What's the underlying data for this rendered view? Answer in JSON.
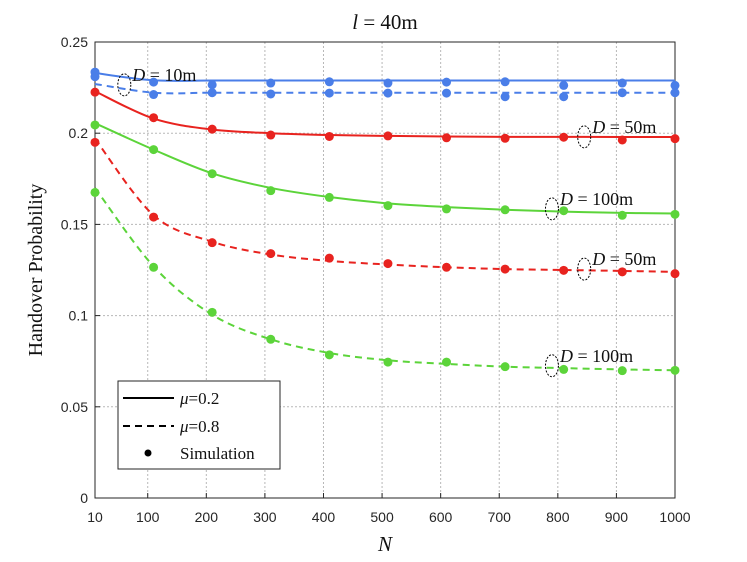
{
  "chart_data": {
    "type": "line",
    "title_var": "l",
    "title_value": " = 40m",
    "xlabel": "N",
    "ylabel": "Handover Probability",
    "xlim": [
      10,
      1000
    ],
    "ylim": [
      0,
      0.25
    ],
    "xticks": [
      10,
      100,
      200,
      300,
      400,
      500,
      600,
      700,
      800,
      900,
      1000
    ],
    "yticks": [
      0,
      0.05,
      0.1,
      0.15,
      0.2,
      0.25
    ],
    "ytick_labels": [
      "0",
      "0.05",
      "0.1",
      "0.15",
      "0.2",
      "0.25"
    ],
    "grid": true,
    "legend_position": "bottom-left",
    "legend": [
      {
        "style": "solid",
        "var": "μ",
        "text": "=0.2"
      },
      {
        "style": "dashed",
        "var": "μ",
        "text": "=0.8"
      },
      {
        "style": "marker",
        "var": "",
        "text": "Simulation"
      }
    ],
    "x": [
      10,
      110,
      210,
      310,
      410,
      510,
      610,
      710,
      810,
      910,
      1000
    ],
    "series": [
      {
        "name": "D=10m, μ=0.2",
        "color": "#4a7ee8",
        "dash": "solid",
        "values": [
          0.233,
          0.229,
          0.2289,
          0.2289,
          0.2289,
          0.2289,
          0.2289,
          0.2289,
          0.2289,
          0.2289,
          0.2289
        ],
        "sim": [
          0.2335,
          0.228,
          0.2265,
          0.2275,
          0.2282,
          0.2275,
          0.228,
          0.2282,
          0.2262,
          0.2275,
          0.2262
        ]
      },
      {
        "name": "D=10m, μ=0.8",
        "color": "#4a7ee8",
        "dash": "dashed",
        "values": [
          0.227,
          0.2222,
          0.2222,
          0.2222,
          0.2222,
          0.2222,
          0.2222,
          0.2222,
          0.2222,
          0.2222,
          0.2222
        ],
        "sim": [
          0.231,
          0.2212,
          0.2222,
          0.2215,
          0.222,
          0.222,
          0.222,
          0.22,
          0.22,
          0.2222,
          0.2222
        ]
      },
      {
        "name": "D=50m, μ=0.2",
        "color": "#e8231f",
        "dash": "solid",
        "values": [
          0.223,
          0.208,
          0.202,
          0.2,
          0.199,
          0.1985,
          0.1982,
          0.198,
          0.198,
          0.1979,
          0.1979
        ],
        "sim": [
          0.2225,
          0.2085,
          0.2022,
          0.199,
          0.1982,
          0.1985,
          0.1975,
          0.1972,
          0.1978,
          0.1963,
          0.197
        ]
      },
      {
        "name": "D=50m, μ=0.8",
        "color": "#e8231f",
        "dash": "dashed",
        "values": [
          0.197,
          0.155,
          0.1405,
          0.1335,
          0.13,
          0.128,
          0.1265,
          0.1255,
          0.125,
          0.1245,
          0.124
        ],
        "sim": [
          0.195,
          0.154,
          0.14,
          0.134,
          0.1315,
          0.1285,
          0.1265,
          0.1255,
          0.1248,
          0.124,
          0.123
        ]
      },
      {
        "name": "D=100m, μ=0.2",
        "color": "#5cd43a",
        "dash": "solid",
        "values": [
          0.2055,
          0.191,
          0.178,
          0.17,
          0.165,
          0.1615,
          0.1595,
          0.158,
          0.157,
          0.1563,
          0.156
        ],
        "sim": [
          0.2045,
          0.191,
          0.1778,
          0.1685,
          0.1648,
          0.1603,
          0.1585,
          0.158,
          0.1575,
          0.155,
          0.1555
        ]
      },
      {
        "name": "D=100m, μ=0.8",
        "color": "#5cd43a",
        "dash": "dashed",
        "values": [
          0.17,
          0.127,
          0.1005,
          0.087,
          0.0795,
          0.0755,
          0.0735,
          0.072,
          0.0712,
          0.0705,
          0.07
        ],
        "sim": [
          0.1675,
          0.1265,
          0.1018,
          0.087,
          0.0785,
          0.0745,
          0.0745,
          0.072,
          0.0705,
          0.0698,
          0.07
        ]
      }
    ],
    "annotations": [
      {
        "var": "D",
        "text": " = 10m",
        "x": 60,
        "y": 0.2265
      },
      {
        "var": "D",
        "text": " = 50m",
        "x": 845,
        "y": 0.198
      },
      {
        "var": "D",
        "text": " = 100m",
        "x": 790,
        "y": 0.1585
      },
      {
        "var": "D",
        "text": " = 50m",
        "x": 845,
        "y": 0.1255
      },
      {
        "var": "D",
        "text": " = 100m",
        "x": 790,
        "y": 0.0725
      }
    ]
  }
}
